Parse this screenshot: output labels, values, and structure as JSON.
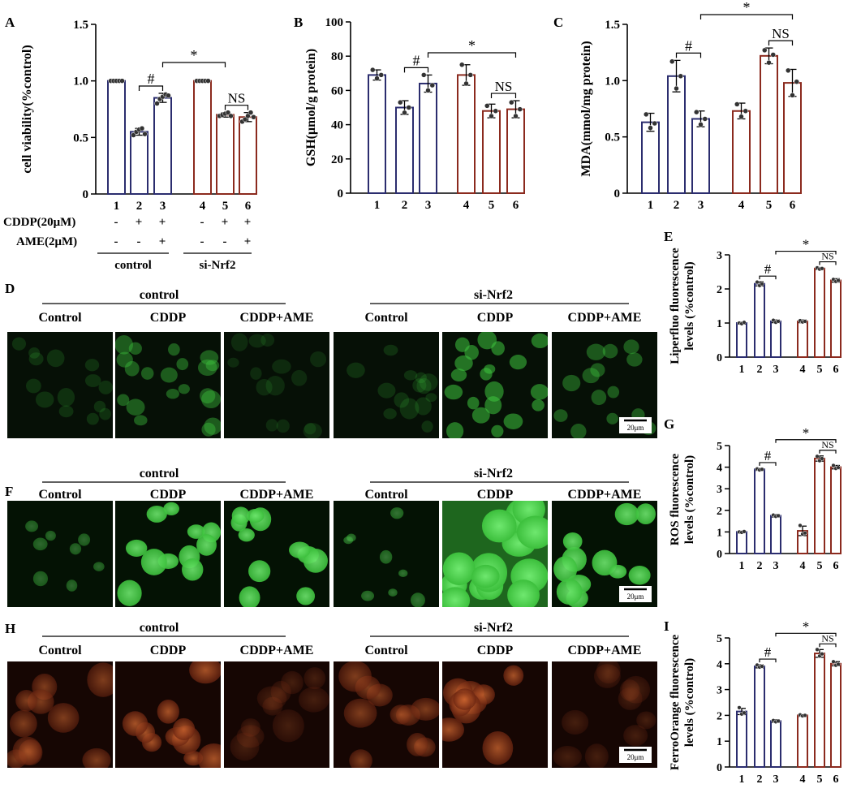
{
  "colors": {
    "group_control": "#2b2d6e",
    "group_sinrf2": "#8b2a1e",
    "axis": "#000000",
    "green_fluor": "#3ec43e",
    "orange_fluor": "#c95a2a",
    "dot": "#333333"
  },
  "panel_letters": {
    "A": "A",
    "B": "B",
    "C": "C",
    "D": "D",
    "E": "E",
    "F": "F",
    "G": "G",
    "H": "H",
    "I": "I"
  },
  "treatment_table": {
    "cddp_label": "CDDP(20μM)",
    "ame_label": "AME(2μM)",
    "cddp_signs": [
      "-",
      "+",
      "+",
      "-",
      "+",
      "+"
    ],
    "ame_signs": [
      "-",
      "-",
      "+",
      "-",
      "-",
      "+"
    ],
    "group_control": "control",
    "group_sinrf2": "si-Nrf2"
  },
  "micro_headers": {
    "group_control": "control",
    "group_sinrf2": "si-Nrf2",
    "conditions": [
      "Control",
      "CDDP",
      "CDDP+AME",
      "Control",
      "CDDP",
      "CDDP+AME"
    ],
    "scale_bar": "20μm"
  },
  "chart_data": [
    {
      "id": "A",
      "type": "bar",
      "ylabel": "cell viability(%control)",
      "ylim": [
        0,
        1.5
      ],
      "yticks": [
        0,
        0.5,
        1.0,
        1.5
      ],
      "ytick_labels": [
        "0",
        "0.5",
        "1.0",
        "1.5"
      ],
      "categories": [
        "1",
        "2",
        "3",
        "4",
        "5",
        "6"
      ],
      "values": [
        1.0,
        0.55,
        0.85,
        1.0,
        0.7,
        0.68
      ],
      "errors": [
        0,
        0.03,
        0.04,
        0,
        0.02,
        0.04
      ],
      "points": [
        [
          1,
          1,
          1,
          1,
          1
        ],
        [
          0.52,
          0.55,
          0.57,
          0.58,
          0.53
        ],
        [
          0.8,
          0.84,
          0.86,
          0.88,
          0.87
        ],
        [
          1,
          1,
          1,
          1,
          1
        ],
        [
          0.69,
          0.7,
          0.71,
          0.72,
          0.69
        ],
        [
          0.64,
          0.66,
          0.69,
          0.72,
          0.68
        ]
      ],
      "annotations": [
        {
          "text": "#",
          "between": [
            2,
            3
          ]
        },
        {
          "text": "*",
          "between": [
            3,
            5
          ]
        },
        {
          "text": "NS",
          "between": [
            5,
            6
          ]
        }
      ]
    },
    {
      "id": "B",
      "type": "bar",
      "ylabel": "GSH(μmol/g protein)",
      "ylim": [
        0,
        100
      ],
      "yticks": [
        0,
        20,
        40,
        60,
        80,
        100
      ],
      "ytick_labels": [
        "0",
        "20",
        "40",
        "60",
        "80",
        "100"
      ],
      "categories": [
        "1",
        "2",
        "3",
        "4",
        "5",
        "6"
      ],
      "values": [
        69,
        50,
        64,
        69,
        48,
        49
      ],
      "errors": [
        3,
        4,
        5,
        6,
        4,
        5
      ],
      "points": [
        [
          72,
          67,
          69
        ],
        [
          53,
          47,
          50
        ],
        [
          69,
          60,
          63
        ],
        [
          75,
          64,
          69
        ],
        [
          51,
          45,
          48
        ],
        [
          53,
          45,
          49
        ]
      ],
      "annotations": [
        {
          "text": "#",
          "between": [
            2,
            3
          ]
        },
        {
          "text": "*",
          "between": [
            3,
            6
          ]
        },
        {
          "text": "NS",
          "between": [
            5,
            6
          ]
        }
      ]
    },
    {
      "id": "C",
      "type": "bar",
      "ylabel": "MDA(mmol/mg protein)",
      "ylim": [
        0,
        1.5
      ],
      "yticks": [
        0,
        0.5,
        1.0,
        1.5
      ],
      "ytick_labels": [
        "0",
        "0.5",
        "1.0",
        "1.5"
      ],
      "categories": [
        "1",
        "2",
        "3",
        "4",
        "5",
        "6"
      ],
      "values": [
        0.63,
        1.04,
        0.66,
        0.73,
        1.22,
        0.98
      ],
      "errors": [
        0.08,
        0.14,
        0.07,
        0.07,
        0.07,
        0.12
      ],
      "points": [
        [
          0.7,
          0.58,
          0.62
        ],
        [
          1.17,
          0.93,
          1.04
        ],
        [
          0.72,
          0.61,
          0.66
        ],
        [
          0.79,
          0.68,
          0.73
        ],
        [
          1.27,
          1.16,
          1.23
        ],
        [
          1.09,
          0.87,
          0.99
        ]
      ],
      "annotations": [
        {
          "text": "#",
          "between": [
            2,
            3
          ]
        },
        {
          "text": "*",
          "between": [
            3,
            6
          ]
        },
        {
          "text": "NS",
          "between": [
            5,
            6
          ]
        }
      ]
    },
    {
      "id": "E",
      "type": "bar",
      "ylabel": "Liperfluo fluorescence levels (%control)",
      "ylim": [
        0,
        3
      ],
      "yticks": [
        0,
        1,
        2,
        3
      ],
      "ytick_labels": [
        "0",
        "1",
        "2",
        "3"
      ],
      "categories": [
        "1",
        "2",
        "3",
        "4",
        "5",
        "6"
      ],
      "values": [
        1.0,
        2.15,
        1.05,
        1.05,
        2.6,
        2.25
      ],
      "errors": [
        0.03,
        0.06,
        0.04,
        0.04,
        0.03,
        0.05
      ],
      "points": [
        [
          1.0,
          0.98,
          1.02
        ],
        [
          2.2,
          2.1,
          2.15
        ],
        [
          1.08,
          1.02,
          1.05
        ],
        [
          1.07,
          1.03,
          1.05
        ],
        [
          2.62,
          2.58,
          2.6
        ],
        [
          2.28,
          2.22,
          2.25
        ]
      ],
      "annotations": [
        {
          "text": "#",
          "between": [
            2,
            3
          ]
        },
        {
          "text": "*",
          "between": [
            3,
            6
          ]
        },
        {
          "text": "NS",
          "between": [
            5,
            6
          ]
        }
      ]
    },
    {
      "id": "G",
      "type": "bar",
      "ylabel": "ROS fluorescence levels (%control)",
      "ylim": [
        0,
        5
      ],
      "yticks": [
        0,
        1,
        2,
        3,
        4,
        5
      ],
      "ytick_labels": [
        "0",
        "1",
        "2",
        "3",
        "4",
        "5"
      ],
      "categories": [
        "1",
        "2",
        "3",
        "4",
        "5",
        "6"
      ],
      "values": [
        1.0,
        3.9,
        1.75,
        1.05,
        4.4,
        4.0
      ],
      "errors": [
        0.03,
        0.05,
        0.06,
        0.22,
        0.12,
        0.08
      ],
      "points": [
        [
          1.0,
          0.98,
          1.02
        ],
        [
          3.92,
          3.87,
          3.9
        ],
        [
          1.78,
          1.72,
          1.75
        ],
        [
          1.3,
          0.9,
          0.95
        ],
        [
          4.5,
          4.3,
          4.4
        ],
        [
          4.08,
          3.94,
          3.98
        ]
      ],
      "annotations": [
        {
          "text": "#",
          "between": [
            2,
            3
          ]
        },
        {
          "text": "*",
          "between": [
            3,
            6
          ]
        },
        {
          "text": "NS",
          "between": [
            5,
            6
          ]
        }
      ]
    },
    {
      "id": "I",
      "type": "bar",
      "ylabel": "FerroOrange fluorescence levels (%control)",
      "ylim": [
        0,
        5
      ],
      "yticks": [
        0,
        1,
        2,
        3,
        4,
        5
      ],
      "ytick_labels": [
        "0",
        "1",
        "2",
        "3",
        "4",
        "5"
      ],
      "categories": [
        "1",
        "2",
        "3",
        "4",
        "5",
        "6"
      ],
      "values": [
        2.15,
        3.9,
        1.78,
        2.0,
        4.4,
        4.0
      ],
      "errors": [
        0.12,
        0.06,
        0.05,
        0.04,
        0.15,
        0.08
      ],
      "points": [
        [
          2.3,
          2.05,
          2.1
        ],
        [
          3.95,
          3.87,
          3.9
        ],
        [
          1.8,
          1.75,
          1.78
        ],
        [
          2.02,
          1.98,
          2.0
        ],
        [
          4.55,
          4.3,
          4.38
        ],
        [
          4.08,
          3.94,
          3.98
        ]
      ],
      "annotations": [
        {
          "text": "#",
          "between": [
            2,
            3
          ]
        },
        {
          "text": "*",
          "between": [
            3,
            6
          ]
        },
        {
          "text": "NS",
          "between": [
            5,
            6
          ]
        }
      ]
    }
  ]
}
